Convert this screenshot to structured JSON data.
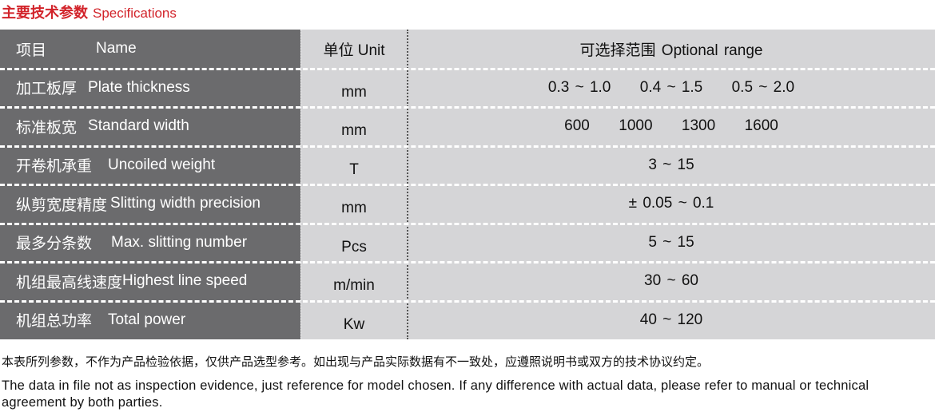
{
  "title": {
    "cn": "主要技术参数",
    "en": "Specifications"
  },
  "header": {
    "name_cn": "项目",
    "name_en": "Name",
    "unit": "单位 Unit",
    "range": "可选择范围 Optional range"
  },
  "rows": [
    {
      "name_cn": "加工板厚",
      "name_en": "Plate thickness",
      "unit": "mm",
      "range": "0.3 ~ 1.0     0.4 ~ 1.5     0.5 ~ 2.0"
    },
    {
      "name_cn": "标准板宽",
      "name_en": "Standard width",
      "unit": "mm",
      "range": "600     1000     1300     1600"
    },
    {
      "name_cn": "开卷机承重",
      "name_en": "Uncoiled weight",
      "unit": "T",
      "range": "3 ~ 15"
    },
    {
      "name_cn": "纵剪宽度精度",
      "name_en": "Slitting width precision",
      "unit": "mm",
      "range": "± 0.05 ~ 0.1"
    },
    {
      "name_cn": "最多分条数",
      "name_en": "Max. slitting number",
      "unit": "Pcs",
      "range": "5 ~ 15"
    },
    {
      "name_cn": "机组最高线速度",
      "name_en": "Highest line speed",
      "unit": "m/min",
      "range": "30 ~ 60"
    },
    {
      "name_cn": "机组总功率",
      "name_en": "Total power",
      "unit": "Kw",
      "range": "40 ~ 120"
    }
  ],
  "notes": {
    "cn": "本表所列参数，不作为产品检验依据，仅供产品选型参考。如出现与产品实际数据有不一致处，应遵照说明书或双方的技术协议约定。",
    "en": "The data in file not as inspection evidence, just reference for model chosen. If any difference with actual data, please refer to manual or technical agreement by both parties."
  }
}
